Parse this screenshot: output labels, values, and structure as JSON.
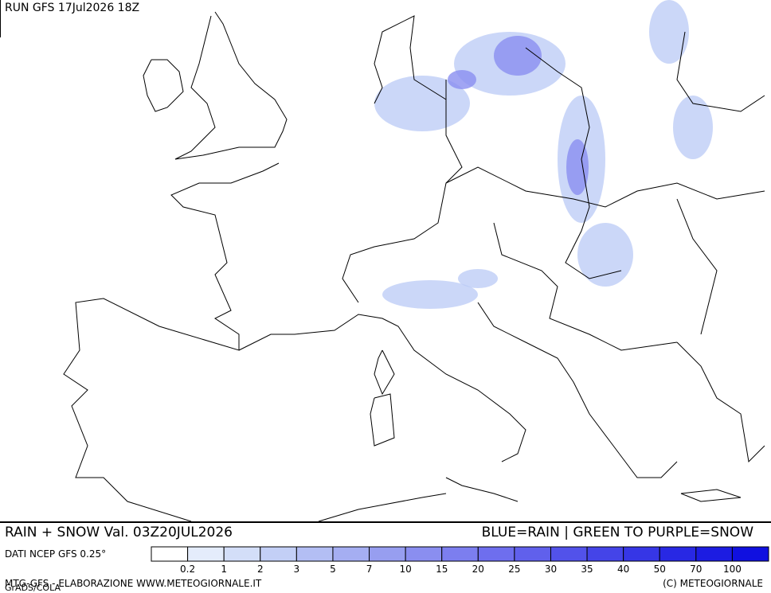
{
  "header": {
    "run": "RUN GFS 17Jul2026 18Z"
  },
  "footer": {
    "field": "RAIN + SNOW Val. 03Z20JUL2026",
    "note": "BLUE=RAIN | GREEN TO PURPLE=SNOW",
    "source": "DATI NCEP GFS 0.25°",
    "credit": "MTG-GFS - ELABORAZIONE WWW.METEOGIORNALE.IT",
    "software": "GrADS/COLA",
    "copyright": "(C) METEOGIORNALE"
  },
  "legend": {
    "levels": [
      0.2,
      1,
      2,
      3,
      5,
      7,
      10,
      15,
      20,
      25,
      30,
      35,
      40,
      50,
      70,
      100
    ],
    "colors": [
      "#ffffff",
      "#e4ecfb",
      "#d3def8",
      "#c3cff6",
      "#b3bef4",
      "#a5aef2",
      "#979ef0",
      "#8a8ef0",
      "#7c7eef",
      "#6e6eee",
      "#6060ec",
      "#5252ea",
      "#4444e8",
      "#3636e6",
      "#2828e4",
      "#1c1ce2",
      "#1010e0"
    ]
  }
}
